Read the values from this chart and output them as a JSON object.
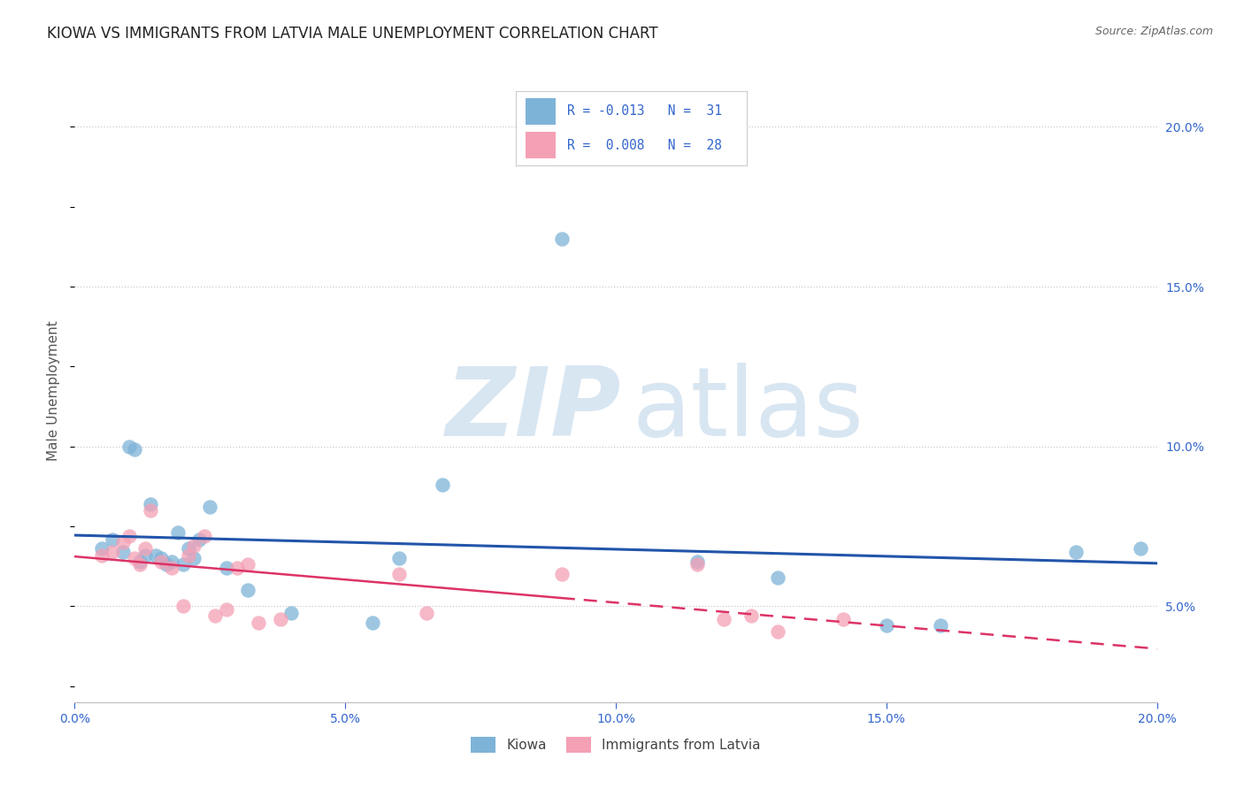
{
  "title": "KIOWA VS IMMIGRANTS FROM LATVIA MALE UNEMPLOYMENT CORRELATION CHART",
  "source": "Source: ZipAtlas.com",
  "ylabel": "Male Unemployment",
  "legend_label_blue": "Kiowa",
  "legend_label_pink": "Immigrants from Latvia",
  "xlim": [
    0.0,
    0.2
  ],
  "ylim": [
    0.02,
    0.215
  ],
  "ytick_vals": [
    0.05,
    0.1,
    0.15,
    0.2
  ],
  "xtick_vals": [
    0.0,
    0.05,
    0.1,
    0.15,
    0.2
  ],
  "blue_color": "#7EB3D8",
  "pink_color": "#F4A0B5",
  "trend_blue_color": "#2255AA",
  "trend_pink_color": "#DD3366",
  "legend_blue_r": "R = -0.013",
  "legend_blue_n": "N =  31",
  "legend_pink_r": "R =  0.008",
  "legend_pink_n": "N =  28",
  "kiowa_x": [
    0.005,
    0.007,
    0.009,
    0.01,
    0.011,
    0.012,
    0.013,
    0.014,
    0.015,
    0.016,
    0.017,
    0.018,
    0.019,
    0.02,
    0.021,
    0.022,
    0.023,
    0.025,
    0.028,
    0.032,
    0.04,
    0.055,
    0.06,
    0.068,
    0.09,
    0.115,
    0.13,
    0.15,
    0.16,
    0.185,
    0.197
  ],
  "kiowa_y": [
    0.068,
    0.071,
    0.067,
    0.1,
    0.099,
    0.064,
    0.066,
    0.082,
    0.066,
    0.065,
    0.063,
    0.064,
    0.073,
    0.063,
    0.068,
    0.065,
    0.071,
    0.081,
    0.062,
    0.055,
    0.048,
    0.045,
    0.065,
    0.088,
    0.165,
    0.064,
    0.059,
    0.044,
    0.044,
    0.067,
    0.068
  ],
  "latvia_x": [
    0.005,
    0.007,
    0.009,
    0.01,
    0.011,
    0.012,
    0.013,
    0.014,
    0.016,
    0.018,
    0.02,
    0.021,
    0.022,
    0.024,
    0.026,
    0.028,
    0.03,
    0.032,
    0.034,
    0.038,
    0.06,
    0.065,
    0.09,
    0.115,
    0.12,
    0.125,
    0.13,
    0.142
  ],
  "latvia_y": [
    0.066,
    0.067,
    0.07,
    0.072,
    0.065,
    0.063,
    0.068,
    0.08,
    0.064,
    0.062,
    0.05,
    0.066,
    0.069,
    0.072,
    0.047,
    0.049,
    0.062,
    0.063,
    0.045,
    0.046,
    0.06,
    0.048,
    0.06,
    0.063,
    0.046,
    0.047,
    0.042,
    0.046
  ]
}
